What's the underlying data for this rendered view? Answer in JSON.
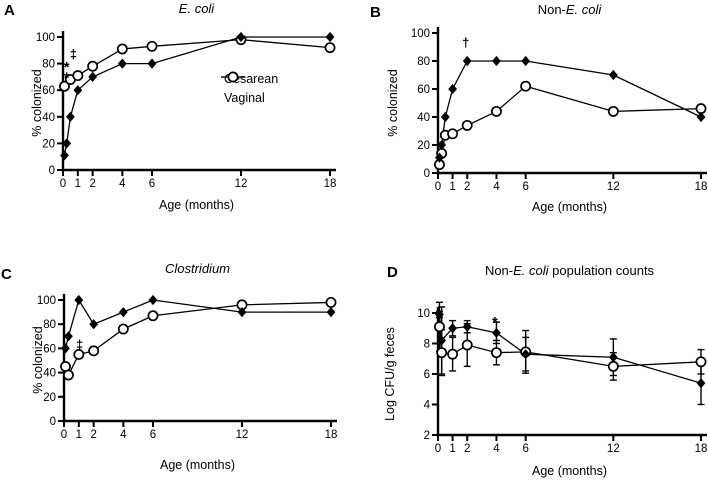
{
  "figure": {
    "background": "#ffffff",
    "foreground": "#000000",
    "legend": {
      "items": [
        {
          "label": "Cesarean",
          "marker": "filled-diamond"
        },
        {
          "label": "Vaginal",
          "marker": "open-circle"
        }
      ]
    }
  },
  "chart_data": [
    {
      "id": "A",
      "panel_label": "A",
      "type": "line",
      "title_parts": [
        {
          "text": "E. coli",
          "italic": true
        }
      ],
      "xlabel": "Age (months)",
      "ylabel": "% colonized",
      "xlim": [
        0,
        18
      ],
      "ylim": [
        0,
        100
      ],
      "x_ticks": [
        0,
        1,
        2,
        4,
        6,
        12,
        18
      ],
      "y_ticks": [
        0,
        20,
        40,
        60,
        80,
        100
      ],
      "series": [
        {
          "name": "Cesarean",
          "marker": "filled-diamond",
          "points": [
            [
              0.1,
              11
            ],
            [
              0.25,
              20
            ],
            [
              0.5,
              40
            ],
            [
              1,
              60
            ],
            [
              2,
              70
            ],
            [
              4,
              80
            ],
            [
              6,
              80
            ],
            [
              12,
              100
            ],
            [
              18,
              100
            ]
          ]
        },
        {
          "name": "Vaginal",
          "marker": "open-circle",
          "points": [
            [
              0.1,
              63
            ],
            [
              0.5,
              68
            ],
            [
              1,
              71
            ],
            [
              2,
              78
            ],
            [
              4,
              91
            ],
            [
              6,
              93
            ],
            [
              12,
              98
            ],
            [
              18,
              92
            ]
          ]
        }
      ],
      "annotations": [
        {
          "text": "*",
          "x": 0.25,
          "y": 79
        },
        {
          "text": "*",
          "x": 0.25,
          "y": 71
        },
        {
          "text": "‡",
          "x": 0.7,
          "y": 87
        }
      ]
    },
    {
      "id": "B",
      "panel_label": "B",
      "type": "line",
      "title_parts": [
        {
          "text": "Non-",
          "italic": false
        },
        {
          "text": "E. coli",
          "italic": true
        }
      ],
      "xlabel": "Age (months)",
      "ylabel": "% colonized",
      "xlim": [
        0,
        18
      ],
      "ylim": [
        0,
        100
      ],
      "x_ticks": [
        0,
        1,
        2,
        4,
        6,
        12,
        18
      ],
      "y_ticks": [
        0,
        20,
        40,
        60,
        80,
        100
      ],
      "series": [
        {
          "name": "Cesarean",
          "marker": "filled-diamond",
          "points": [
            [
              0.1,
              11
            ],
            [
              0.25,
              20
            ],
            [
              0.5,
              40
            ],
            [
              1,
              60
            ],
            [
              2,
              80
            ],
            [
              4,
              80
            ],
            [
              6,
              80
            ],
            [
              12,
              70
            ],
            [
              18,
              40
            ]
          ]
        },
        {
          "name": "Vaginal",
          "marker": "open-circle",
          "points": [
            [
              0.1,
              6
            ],
            [
              0.25,
              14
            ],
            [
              0.5,
              27
            ],
            [
              1,
              28
            ],
            [
              2,
              34
            ],
            [
              4,
              44
            ],
            [
              6,
              62
            ],
            [
              12,
              44
            ],
            [
              18,
              46
            ]
          ]
        }
      ],
      "annotations": [
        {
          "text": "†",
          "x": 1.9,
          "y": 93
        }
      ]
    },
    {
      "id": "C",
      "panel_label": "C",
      "type": "line",
      "title_parts": [
        {
          "text": "Clostridium",
          "italic": true
        }
      ],
      "xlabel": "Age (months)",
      "ylabel": "% colonized",
      "xlim": [
        0,
        18
      ],
      "ylim": [
        0,
        100
      ],
      "x_ticks": [
        0,
        1,
        2,
        4,
        6,
        12,
        18
      ],
      "y_ticks": [
        0,
        20,
        40,
        60,
        80,
        100
      ],
      "series": [
        {
          "name": "Cesarean",
          "marker": "filled-diamond",
          "points": [
            [
              0.1,
              60
            ],
            [
              0.3,
              70
            ],
            [
              1,
              100
            ],
            [
              2,
              80
            ],
            [
              4,
              90
            ],
            [
              6,
              100
            ],
            [
              12,
              90
            ],
            [
              18,
              90
            ]
          ]
        },
        {
          "name": "Vaginal",
          "marker": "open-circle",
          "points": [
            [
              0.1,
              45
            ],
            [
              0.3,
              38
            ],
            [
              1,
              55
            ],
            [
              2,
              58
            ],
            [
              4,
              76
            ],
            [
              6,
              87
            ],
            [
              12,
              96
            ],
            [
              18,
              98
            ]
          ]
        }
      ],
      "annotations": [
        {
          "text": "‡",
          "x": 1.05,
          "y": 63
        }
      ]
    },
    {
      "id": "D",
      "panel_label": "D",
      "type": "line",
      "title_parts": [
        {
          "text": "Non-",
          "italic": false
        },
        {
          "text": "E. coli",
          "italic": true
        },
        {
          "text": " population counts",
          "italic": false
        }
      ],
      "xlabel": "Age (months)",
      "ylabel": "Log CFU/g feces",
      "xlim": [
        0,
        18
      ],
      "ylim": [
        2,
        10
      ],
      "x_ticks": [
        0,
        1,
        2,
        4,
        6,
        12,
        18
      ],
      "y_ticks": [
        2,
        4,
        6,
        8,
        10
      ],
      "series": [
        {
          "name": "Cesarean",
          "marker": "filled-diamond",
          "points": [
            [
              0.1,
              9.9
            ],
            [
              0.25,
              8.2
            ],
            [
              1,
              9.0
            ],
            [
              2,
              9.1
            ],
            [
              4,
              8.7
            ],
            [
              6,
              7.3
            ],
            [
              12,
              7.1
            ],
            [
              18,
              5.4
            ]
          ],
          "errors": [
            0.2,
            2.2,
            0.5,
            0.4,
            0.7,
            1.1,
            1.2,
            1.4
          ]
        },
        {
          "name": "Vaginal",
          "marker": "open-circle",
          "points": [
            [
              0.1,
              9.1
            ],
            [
              0.25,
              7.4
            ],
            [
              1,
              7.3
            ],
            [
              2,
              7.9
            ],
            [
              4,
              7.4
            ],
            [
              6,
              7.45
            ],
            [
              12,
              6.5
            ],
            [
              18,
              6.8
            ]
          ],
          "errors": [
            1.6,
            1.5,
            1.1,
            1.4,
            0.8,
            1.4,
            0.9,
            0.8
          ]
        }
      ],
      "annotations": [
        {
          "text": "*",
          "x": 3.9,
          "y": 9.55
        }
      ]
    }
  ]
}
